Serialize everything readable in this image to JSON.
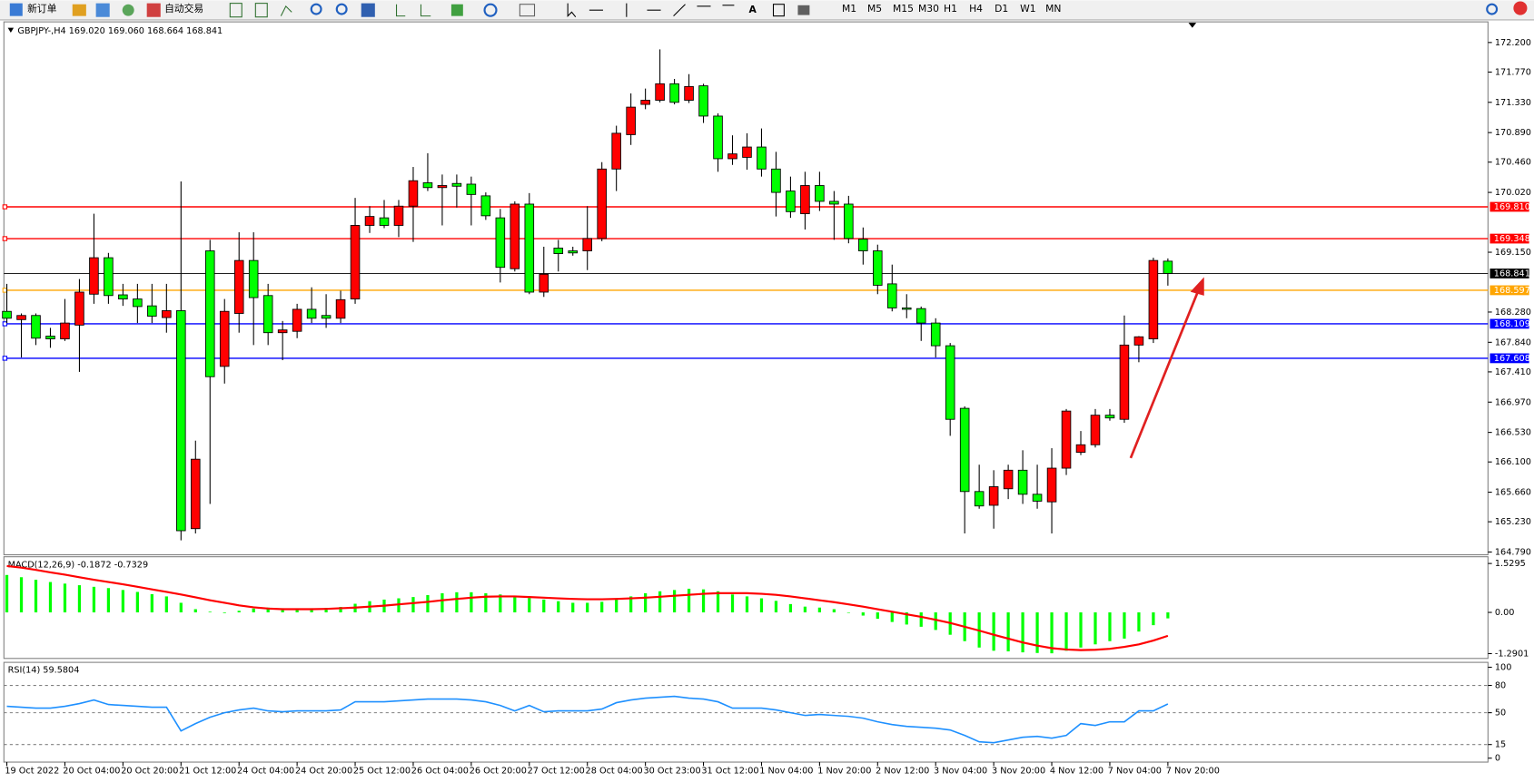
{
  "toolbar": {
    "new_order": "新订单",
    "auto_trading": "自动交易",
    "text_tool": "A",
    "timeframes": [
      "M1",
      "M5",
      "M15",
      "M30",
      "H1",
      "H4",
      "D1",
      "W1",
      "MN"
    ]
  },
  "chart_data": [
    {
      "type": "candlestick",
      "title": "GBPJPY-,H4  169.020 169.060 168.664 168.841",
      "categories": [
        "19 Oct 2022",
        null,
        null,
        null,
        "20 Oct 04:00",
        null,
        null,
        null,
        "20 Oct 20:00",
        null,
        null,
        null,
        "21 Oct 12:00",
        null,
        null,
        null,
        "24 Oct 04:00",
        null,
        null,
        null,
        "24 Oct 20:00",
        null,
        null,
        null,
        "25 Oct 12:00",
        null,
        null,
        null,
        "26 Oct 04:00",
        null,
        null,
        null,
        "26 Oct 20:00",
        null,
        null,
        null,
        "27 Oct 12:00",
        null,
        null,
        null,
        "28 Oct 04:00",
        null,
        null,
        null,
        "30 Oct 23:00",
        null,
        null,
        null,
        "31 Oct 12:00",
        null,
        null,
        null,
        "1 Nov 04:00",
        null,
        null,
        null,
        "1 Nov 20:00",
        null,
        null,
        null,
        "2 Nov 12:00",
        null,
        null,
        null,
        "3 Nov 04:00",
        null,
        null,
        null,
        "3 Nov 20:00",
        null,
        null,
        null,
        "4 Nov 12:00",
        null,
        null,
        null,
        "7 Nov 04:00",
        null,
        null,
        null,
        "7 Nov 20:00"
      ],
      "open": [
        168.29,
        168.17,
        168.23,
        167.93,
        167.89,
        168.09,
        168.54,
        169.07,
        168.53,
        168.47,
        168.37,
        168.2,
        168.3,
        165.13,
        169.17,
        167.49,
        168.26,
        169.03,
        168.52,
        167.98,
        168.0,
        168.32,
        168.23,
        168.19,
        168.47,
        169.54,
        169.65,
        169.54,
        169.82,
        170.16,
        170.09,
        170.15,
        170.14,
        169.97,
        169.65,
        168.91,
        169.85,
        168.57,
        169.21,
        169.17,
        169.17,
        169.35,
        170.36,
        170.86,
        171.3,
        171.36,
        171.6,
        171.36,
        171.57,
        171.13,
        170.51,
        170.53,
        170.68,
        170.36,
        170.04,
        169.71,
        170.12,
        169.89,
        169.85,
        169.34,
        169.17,
        168.69,
        168.34,
        168.33,
        168.12,
        167.79,
        166.88,
        165.67,
        165.47,
        165.71,
        165.98,
        165.63,
        165.52,
        166.01,
        166.24,
        166.35,
        166.78,
        166.72,
        167.8,
        167.89,
        169.02
      ],
      "high": [
        168.69,
        168.26,
        168.26,
        168.05,
        168.47,
        168.76,
        169.71,
        169.14,
        168.69,
        168.69,
        168.69,
        168.69,
        170.18,
        166.41,
        169.33,
        168.47,
        169.44,
        169.44,
        168.69,
        168.15,
        168.4,
        168.64,
        168.54,
        168.59,
        169.94,
        169.82,
        169.91,
        169.91,
        170.39,
        170.59,
        170.28,
        170.28,
        170.25,
        170.02,
        169.78,
        169.89,
        170.01,
        169.23,
        169.33,
        169.23,
        169.82,
        170.46,
        170.99,
        171.46,
        171.53,
        172.1,
        171.67,
        171.74,
        171.6,
        171.17,
        170.85,
        170.88,
        170.95,
        170.61,
        170.25,
        170.32,
        170.32,
        170.04,
        169.97,
        169.51,
        169.26,
        168.97,
        168.54,
        168.36,
        168.19,
        167.83,
        166.91,
        166.06,
        165.98,
        166.06,
        166.27,
        166.06,
        166.3,
        166.87,
        166.55,
        166.87,
        166.87,
        168.23,
        167.93,
        169.07,
        169.06
      ],
      "low": [
        168.12,
        167.62,
        167.8,
        167.76,
        167.86,
        167.41,
        168.4,
        168.4,
        168.37,
        168.12,
        168.12,
        167.98,
        164.96,
        165.06,
        165.49,
        167.24,
        167.98,
        167.8,
        167.8,
        167.58,
        167.9,
        168.12,
        168.05,
        168.12,
        168.4,
        169.43,
        169.5,
        169.37,
        169.3,
        170.04,
        169.54,
        169.8,
        169.54,
        169.62,
        168.71,
        168.87,
        168.54,
        168.5,
        168.87,
        169.1,
        168.89,
        169.31,
        170.04,
        170.71,
        171.23,
        171.33,
        171.3,
        171.32,
        171.03,
        170.32,
        170.42,
        170.35,
        170.25,
        169.67,
        169.65,
        169.48,
        169.75,
        169.33,
        169.28,
        168.97,
        168.54,
        168.29,
        168.19,
        167.86,
        167.62,
        166.48,
        165.06,
        165.42,
        165.13,
        165.56,
        165.49,
        165.42,
        165.06,
        165.91,
        166.2,
        166.31,
        166.7,
        166.67,
        167.55,
        167.83,
        168.664
      ],
      "close": [
        168.19,
        168.23,
        167.9,
        167.89,
        168.12,
        168.57,
        169.07,
        168.52,
        168.47,
        168.36,
        168.22,
        168.3,
        165.1,
        166.14,
        167.34,
        168.29,
        169.03,
        168.49,
        167.98,
        168.02,
        168.32,
        168.19,
        168.19,
        168.46,
        169.54,
        169.67,
        169.54,
        169.82,
        170.19,
        170.09,
        170.12,
        170.11,
        169.99,
        169.68,
        168.93,
        169.85,
        168.57,
        168.83,
        169.13,
        169.14,
        169.35,
        170.36,
        170.88,
        171.26,
        171.36,
        171.6,
        171.33,
        171.56,
        171.13,
        170.51,
        170.58,
        170.68,
        170.36,
        170.02,
        169.74,
        170.12,
        169.89,
        169.85,
        169.35,
        169.17,
        168.67,
        168.34,
        168.32,
        168.12,
        167.79,
        166.72,
        165.67,
        165.46,
        165.74,
        165.98,
        165.63,
        165.53,
        166.01,
        166.84,
        166.35,
        166.78,
        166.74,
        167.8,
        167.92,
        169.03,
        168.841
      ],
      "up_color": "#ff0000",
      "down_color": "#00ff00",
      "ylim": [
        164.75,
        172.5
      ],
      "yticks": [
        {
          "value": 172.2,
          "label": "172.200"
        },
        {
          "value": 171.77,
          "label": "171.770"
        },
        {
          "value": 171.33,
          "label": "171.330"
        },
        {
          "value": 170.89,
          "label": "170.890"
        },
        {
          "value": 170.46,
          "label": "170.460"
        },
        {
          "value": 170.02,
          "label": "170.020"
        },
        {
          "value": 169.15,
          "label": "169.150"
        },
        {
          "value": 168.28,
          "label": "168.280"
        },
        {
          "value": 167.84,
          "label": "167.840"
        },
        {
          "value": 167.41,
          "label": "167.410"
        },
        {
          "value": 166.97,
          "label": "166.970"
        },
        {
          "value": 166.53,
          "label": "166.530"
        },
        {
          "value": 166.1,
          "label": "166.100"
        },
        {
          "value": 165.66,
          "label": "165.660"
        },
        {
          "value": 165.23,
          "label": "165.230"
        },
        {
          "value": 164.79,
          "label": "164.790"
        }
      ],
      "hlines": [
        {
          "value": 169.81,
          "label": "169.810",
          "color": "#ff0000"
        },
        {
          "value": 169.348,
          "color": "#ff0000"
        },
        {
          "value": 168.597,
          "color": "#ffa500"
        },
        {
          "value": 168.109,
          "color": "#0000ff"
        },
        {
          "value": 167.608,
          "color": "#0000ff"
        }
      ],
      "current_color": "#000000"
    },
    {
      "type": "macd",
      "title": "MACD(12,26,9) -0.1872 -0.7329",
      "histogram": [
        1.17,
        1.1,
        1.02,
        0.95,
        0.9,
        0.85,
        0.8,
        0.76,
        0.7,
        0.64,
        0.57,
        0.5,
        0.3,
        0.1,
        0.02,
        -0.02,
        0.05,
        0.12,
        0.15,
        0.13,
        0.12,
        0.13,
        0.14,
        0.17,
        0.27,
        0.35,
        0.4,
        0.44,
        0.48,
        0.54,
        0.6,
        0.63,
        0.63,
        0.6,
        0.56,
        0.48,
        0.45,
        0.4,
        0.35,
        0.3,
        0.3,
        0.33,
        0.4,
        0.5,
        0.6,
        0.66,
        0.7,
        0.74,
        0.72,
        0.66,
        0.56,
        0.5,
        0.44,
        0.36,
        0.26,
        0.18,
        0.15,
        0.1,
        0.0,
        -0.1,
        -0.2,
        -0.3,
        -0.38,
        -0.45,
        -0.55,
        -0.7,
        -0.9,
        -1.1,
        -1.2,
        -1.22,
        -1.25,
        -1.27,
        -1.28,
        -1.2,
        -1.1,
        -1.0,
        -0.9,
        -0.82,
        -0.6,
        -0.4,
        -0.1872
      ],
      "histogram_color": "#00ff00",
      "signal": [
        1.45,
        1.4,
        1.33,
        1.25,
        1.18,
        1.1,
        1.02,
        0.95,
        0.88,
        0.8,
        0.72,
        0.64,
        0.56,
        0.47,
        0.38,
        0.3,
        0.22,
        0.16,
        0.12,
        0.1,
        0.1,
        0.1,
        0.11,
        0.13,
        0.15,
        0.18,
        0.21,
        0.25,
        0.29,
        0.33,
        0.38,
        0.42,
        0.46,
        0.49,
        0.5,
        0.5,
        0.48,
        0.46,
        0.44,
        0.42,
        0.41,
        0.41,
        0.42,
        0.44,
        0.46,
        0.49,
        0.52,
        0.55,
        0.58,
        0.6,
        0.6,
        0.6,
        0.58,
        0.55,
        0.5,
        0.44,
        0.38,
        0.32,
        0.25,
        0.18,
        0.1,
        0.02,
        -0.06,
        -0.14,
        -0.23,
        -0.33,
        -0.45,
        -0.57,
        -0.7,
        -0.82,
        -0.94,
        -1.04,
        -1.12,
        -1.16,
        -1.18,
        -1.17,
        -1.14,
        -1.08,
        -1.0,
        -0.88,
        -0.7329
      ],
      "signal_color": "#ff0000",
      "ylim": [
        -1.41,
        1.71
      ],
      "yticks": [
        1.5295,
        {
          "value": 0,
          "label": "0.00"
        },
        -1.2901
      ]
    },
    {
      "type": "rsi",
      "title": "RSI(14) 59.5804",
      "values": [
        57,
        56,
        55,
        55,
        57,
        60,
        64,
        59,
        58,
        57,
        56,
        56,
        30,
        38,
        45,
        50,
        53,
        55,
        52,
        51,
        52,
        52,
        52,
        53,
        62,
        62,
        62,
        63,
        64,
        65,
        65,
        65,
        64,
        62,
        58,
        52,
        58,
        51,
        52,
        52,
        52,
        54,
        61,
        64,
        66,
        67,
        68,
        66,
        65,
        62,
        55,
        55,
        55,
        53,
        50,
        47,
        48,
        47,
        46,
        44,
        40,
        37,
        35,
        34,
        33,
        31,
        25,
        18,
        17,
        20,
        23,
        24,
        22,
        25,
        38,
        36,
        40,
        40,
        52,
        52,
        59.5804
      ],
      "color": "#1e90ff",
      "ylim": [
        0,
        100
      ],
      "yticks": [
        100,
        80,
        50,
        15,
        0
      ]
    }
  ]
}
